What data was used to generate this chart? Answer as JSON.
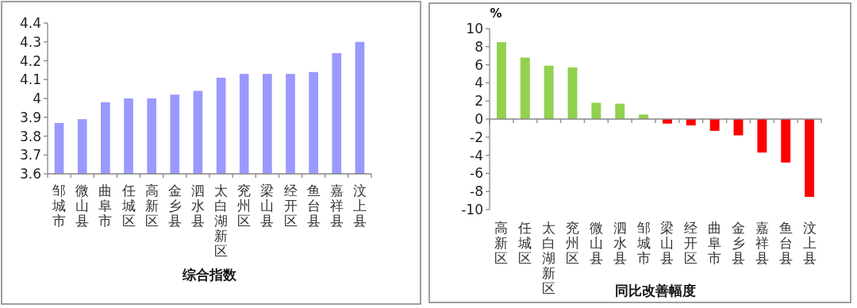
{
  "chart_data": [
    {
      "type": "bar",
      "xlabel": "综合指数",
      "categories": [
        "邹城市",
        "微山县",
        "曲阜市",
        "任城区",
        "高新区",
        "金乡县",
        "泗水县",
        "太白湖新区",
        "兖州区",
        "梁山县",
        "经开区",
        "鱼台县",
        "嘉祥县",
        "汶上县"
      ],
      "values": [
        3.87,
        3.89,
        3.98,
        4.0,
        4.0,
        4.02,
        4.04,
        4.11,
        4.13,
        4.13,
        4.13,
        4.14,
        4.24,
        4.3
      ],
      "color": "#9999ff",
      "ylim": [
        3.6,
        4.4
      ],
      "yticks": [
        3.6,
        3.7,
        3.8,
        3.9,
        4,
        4.1,
        4.2,
        4.3,
        4.4
      ]
    },
    {
      "type": "bar",
      "xlabel": "同比改善幅度",
      "ylabel": "%",
      "categories": [
        "高新区",
        "任城区",
        "太白湖新区",
        "兖州区",
        "微山县",
        "泗水县",
        "邹城市",
        "梁山县",
        "经开区",
        "曲阜市",
        "金乡县",
        "嘉祥县",
        "鱼台县",
        "汶上县"
      ],
      "values": [
        8.5,
        6.8,
        5.9,
        5.7,
        1.8,
        1.7,
        0.5,
        -0.5,
        -0.7,
        -1.3,
        -1.8,
        -3.7,
        -4.8,
        -8.6
      ],
      "colors": [
        "#92d050",
        "#92d050",
        "#92d050",
        "#92d050",
        "#92d050",
        "#92d050",
        "#92d050",
        "#ff0000",
        "#ff0000",
        "#ff0000",
        "#ff0000",
        "#ff0000",
        "#ff0000",
        "#ff0000"
      ],
      "ylim": [
        -10,
        10
      ],
      "yticks": [
        -10,
        -8,
        -6,
        -4,
        -2,
        0,
        2,
        4,
        6,
        8,
        10
      ]
    }
  ]
}
